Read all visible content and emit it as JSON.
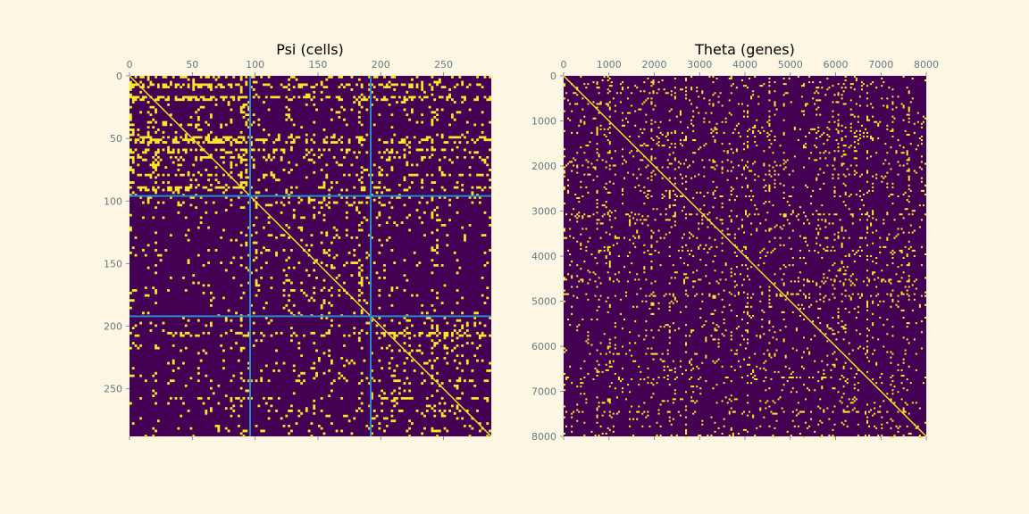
{
  "figure": {
    "background": "#fdf6e3",
    "colormap": {
      "low": "#440154",
      "high": "#fde725"
    },
    "separator_color": "#268bd2"
  },
  "chart_data": [
    {
      "type": "heatmap",
      "title": "Psi (cells)",
      "size": 288,
      "xticks": [
        0,
        50,
        100,
        150,
        200,
        250
      ],
      "yticks": [
        0,
        50,
        100,
        150,
        200,
        250
      ],
      "xtick_position": "top",
      "block_boundaries": [
        96,
        192
      ],
      "diagonal": true,
      "grid": false,
      "description_of_values": "binary adjacency matrix (0/1), sparse with block structure"
    },
    {
      "type": "heatmap",
      "title": "Theta (genes)",
      "size": 8000,
      "xticks": [
        0,
        1000,
        2000,
        3000,
        4000,
        5000,
        6000,
        7000,
        8000
      ],
      "yticks": [
        0,
        1000,
        2000,
        3000,
        4000,
        5000,
        6000,
        7000,
        8000
      ],
      "xtick_position": "top",
      "block_boundaries": [],
      "diagonal": true,
      "grid": false,
      "description_of_values": "binary adjacency matrix (0/1), dense banded structure"
    }
  ]
}
